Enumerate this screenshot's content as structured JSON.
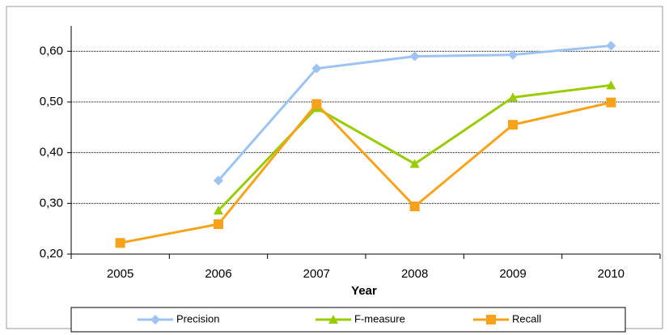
{
  "chart_data": {
    "type": "line",
    "x_label": "Year",
    "categories": [
      "2005",
      "2006",
      "2007",
      "2008",
      "2009",
      "2010"
    ],
    "series": [
      {
        "name": "Precision",
        "color": "#9dc3f3",
        "marker": "diamond",
        "values": [
          null,
          0.345,
          0.566,
          0.59,
          0.593,
          0.611
        ]
      },
      {
        "name": "F-measure",
        "color": "#99cc00",
        "marker": "triangle",
        "values": [
          null,
          0.286,
          0.488,
          0.378,
          0.509,
          0.533
        ]
      },
      {
        "name": "Recall",
        "color": "#f7a21b",
        "marker": "square",
        "values": [
          0.222,
          0.259,
          0.496,
          0.294,
          0.455,
          0.499
        ]
      }
    ],
    "ylim": [
      0.2,
      0.65
    ],
    "yticks": [
      {
        "value": 0.2,
        "label": "0,20"
      },
      {
        "value": 0.3,
        "label": "0,30"
      },
      {
        "value": 0.4,
        "label": "0,40"
      },
      {
        "value": 0.5,
        "label": "0,50"
      },
      {
        "value": 0.6,
        "label": "0,60"
      }
    ],
    "grid": true,
    "legend": "bottom"
  }
}
